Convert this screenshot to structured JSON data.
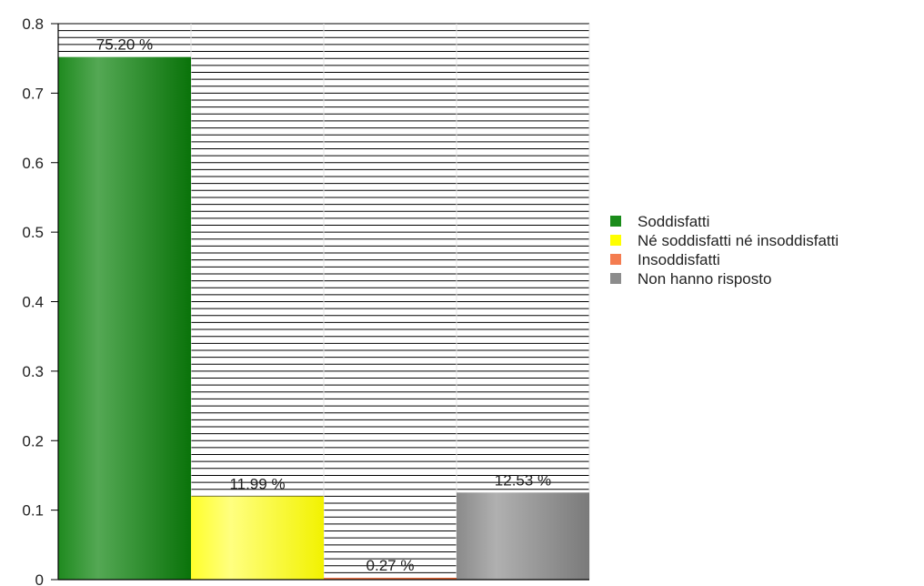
{
  "chart_data": {
    "type": "bar",
    "title": "",
    "xlabel": "",
    "ylabel": "",
    "ylim": [
      0,
      0.8
    ],
    "yticks": [
      0,
      0.1,
      0.2,
      0.3,
      0.4,
      0.5,
      0.6,
      0.7,
      0.8
    ],
    "ytick_labels": [
      "0",
      "0.1",
      "0.2",
      "0.3",
      "0.4",
      "0.5",
      "0.6",
      "0.7",
      "0.8"
    ],
    "grid": true,
    "legend_position": "right",
    "series": [
      {
        "name": "Soddisfatti",
        "value": 0.752,
        "label": "75.20 %",
        "color": "#1a8c1a"
      },
      {
        "name": "Né soddisfatti né insoddisfatti",
        "value": 0.1199,
        "label": "11.99 %",
        "color": "#ffff00"
      },
      {
        "name": "Insoddisfatti",
        "value": 0.0027,
        "label": "0.27 %",
        "color": "#f47c50"
      },
      {
        "name": "Non hanno risposto",
        "value": 0.1253,
        "label": "12.53 %",
        "color": "#8c8c8c"
      }
    ]
  }
}
